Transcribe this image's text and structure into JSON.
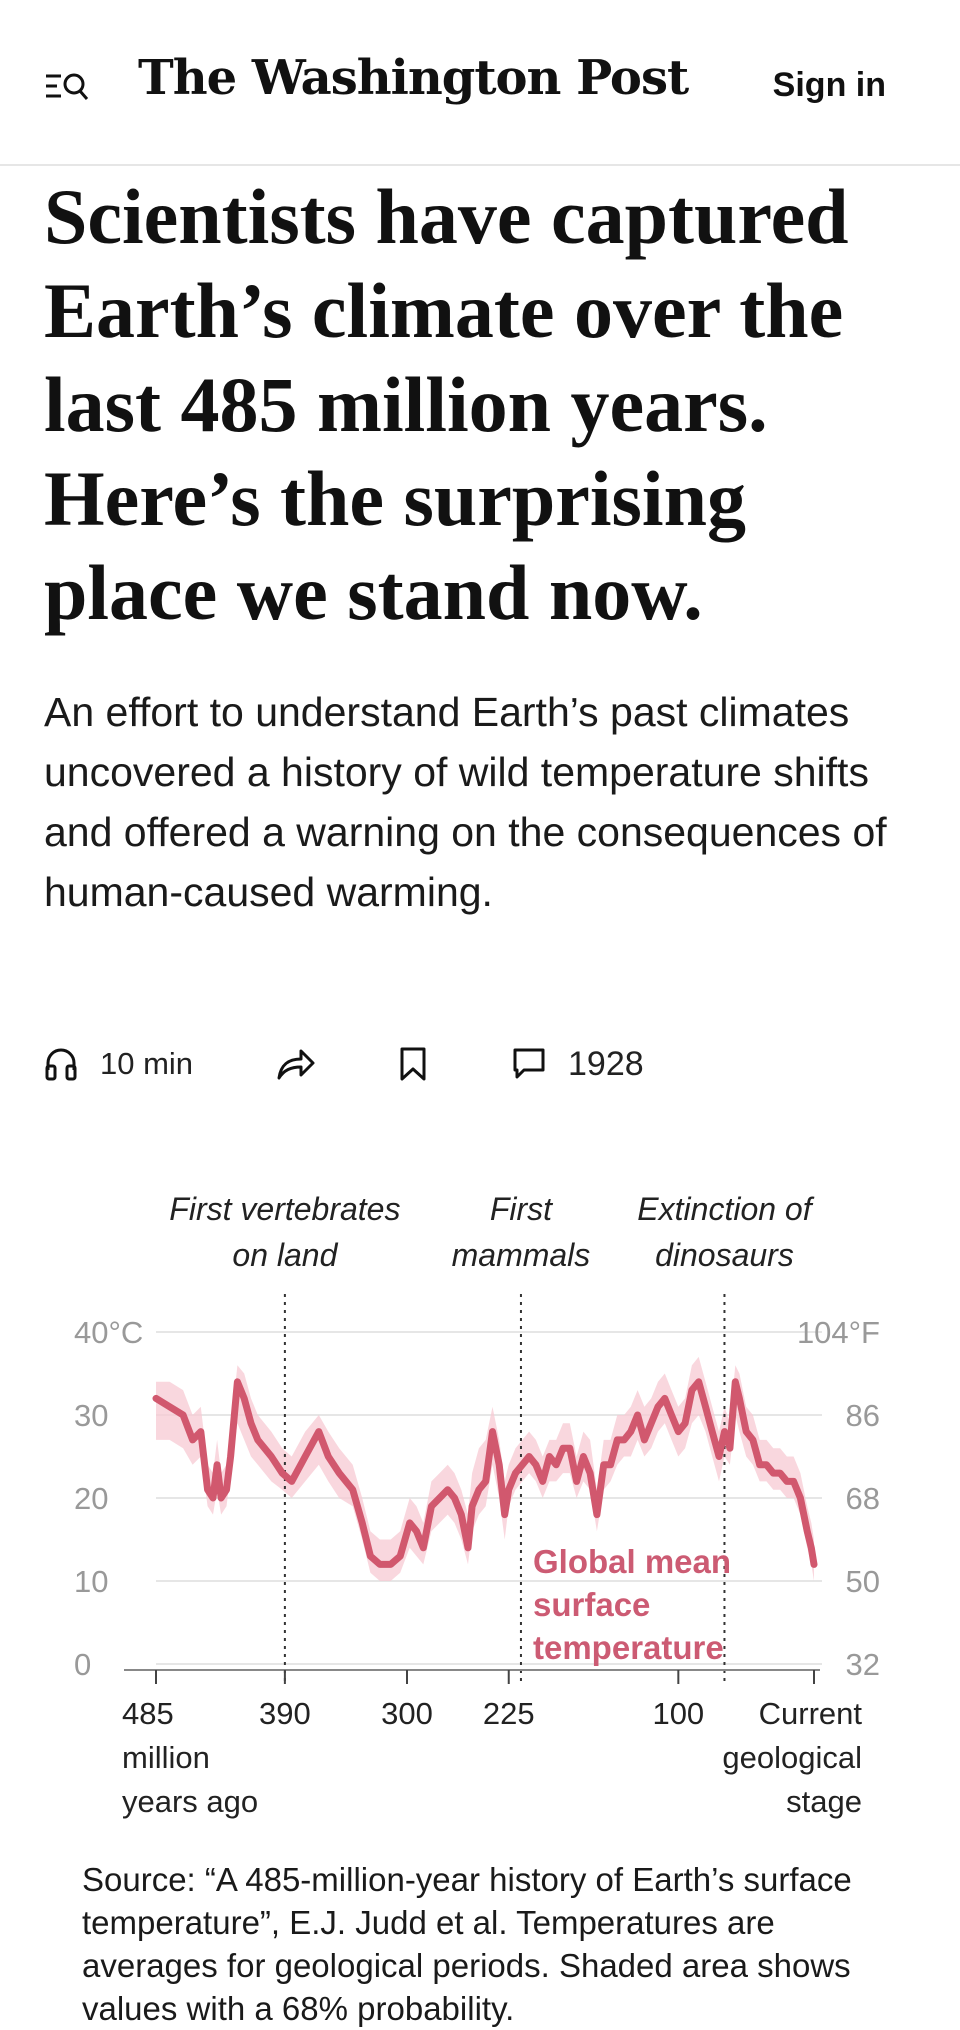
{
  "header": {
    "logo": "The Washington Post",
    "sign_in": "Sign in",
    "menu_icon": "menu-search-icon"
  },
  "article": {
    "headline": "Scientists have captured Earth’s climate over the last 485 million years. Here’s the surprising place we stand now.",
    "dek": "An effort to understand Earth’s past climates uncovered a history of wild temperature shifts and offered a warning on the consequences of human-caused warming."
  },
  "actions": {
    "listen": {
      "icon": "headphones-icon",
      "label": "10 min"
    },
    "share": {
      "icon": "share-icon"
    },
    "save": {
      "icon": "bookmark-icon"
    },
    "comments": {
      "icon": "comment-icon",
      "label": "1928"
    }
  },
  "chart_data": {
    "type": "line",
    "title": "",
    "xlabel": "",
    "ylabel": "",
    "x_reversed": true,
    "xlim": [
      485,
      0
    ],
    "ylim": [
      0,
      40
    ],
    "grid": true,
    "colors": {
      "line": "#d1586e",
      "band": "#f7c9d3",
      "label": "#cc5b73",
      "axis_text": "#999999",
      "grid": "#e6e6e6"
    },
    "y_ticks_left": [
      {
        "value": 40,
        "label": "40°C"
      },
      {
        "value": 30,
        "label": "30"
      },
      {
        "value": 20,
        "label": "20"
      },
      {
        "value": 10,
        "label": "10"
      },
      {
        "value": 0,
        "label": "0"
      }
    ],
    "y_ticks_right": [
      {
        "value": 40,
        "label": "104°F"
      },
      {
        "value": 30,
        "label": "86"
      },
      {
        "value": 20,
        "label": "68"
      },
      {
        "value": 10,
        "label": "50"
      },
      {
        "value": 0,
        "label": "32"
      }
    ],
    "x_ticks": [
      {
        "value": 485,
        "lines": [
          "485",
          "million",
          "years ago"
        ],
        "align": "start"
      },
      {
        "value": 390,
        "lines": [
          "390"
        ],
        "align": "middle"
      },
      {
        "value": 300,
        "lines": [
          "300"
        ],
        "align": "middle"
      },
      {
        "value": 225,
        "lines": [
          "225"
        ],
        "align": "middle"
      },
      {
        "value": 100,
        "lines": [
          "100"
        ],
        "align": "middle"
      },
      {
        "value": 0,
        "lines": [
          "Current",
          "geological",
          "stage"
        ],
        "align": "end"
      }
    ],
    "events": [
      {
        "x": 390,
        "lines": [
          "First vertebrates",
          "on land"
        ]
      },
      {
        "x": 216,
        "lines": [
          "First",
          "mammals"
        ]
      },
      {
        "x": 66,
        "lines": [
          "Extinction of",
          "dinosaurs"
        ]
      }
    ],
    "series": [
      {
        "name": "Global mean surface temperature",
        "label_lines": [
          "Global mean",
          "surface",
          "temperature"
        ],
        "x": [
          485,
          475,
          465,
          458,
          452,
          447,
          443,
          440,
          437,
          433,
          430,
          425,
          420,
          415,
          410,
          400,
          392,
          385,
          375,
          365,
          358,
          350,
          340,
          333,
          327,
          320,
          312,
          305,
          298,
          293,
          288,
          282,
          276,
          270,
          265,
          260,
          255,
          252,
          247,
          242,
          237,
          232,
          228,
          225,
          220,
          215,
          210,
          205,
          200,
          195,
          190,
          185,
          180,
          175,
          170,
          165,
          160,
          155,
          150,
          145,
          140,
          135,
          130,
          125,
          120,
          115,
          110,
          105,
          100,
          95,
          90,
          85,
          80,
          75,
          70,
          66,
          62,
          58,
          55,
          50,
          45,
          40,
          35,
          30,
          25,
          20,
          15,
          10,
          5,
          2,
          0
        ],
        "y": [
          32,
          31,
          30,
          27,
          28,
          21,
          20,
          24,
          20,
          21,
          25,
          34,
          32,
          29,
          27,
          25,
          23,
          22,
          25,
          28,
          25,
          23,
          21,
          17,
          13,
          12,
          12,
          13,
          17,
          16,
          14,
          19,
          20,
          21,
          20,
          18,
          14,
          19,
          21,
          22,
          28,
          24,
          18,
          21,
          23,
          24,
          25,
          24,
          22,
          25,
          24,
          26,
          26,
          22,
          25,
          23,
          18,
          24,
          24,
          27,
          27,
          28,
          30,
          27,
          29,
          31,
          32,
          30,
          28,
          29,
          33,
          34,
          31,
          28,
          25,
          28,
          26,
          34,
          32,
          28,
          27,
          24,
          24,
          23,
          23,
          22,
          22,
          20,
          16,
          14,
          12
        ],
        "band_low": [
          27,
          27,
          26,
          24,
          25,
          19,
          18,
          21,
          18,
          19,
          23,
          29,
          27,
          25,
          24,
          22,
          21,
          20,
          22,
          24,
          22,
          20,
          19,
          15,
          11,
          10,
          10,
          11,
          14,
          13,
          12,
          16,
          17,
          18,
          17,
          15,
          12,
          16,
          18,
          19,
          24,
          20,
          15,
          19,
          21,
          22,
          23,
          22,
          20,
          22,
          22,
          23,
          23,
          20,
          22,
          21,
          16,
          21,
          22,
          24,
          25,
          25,
          27,
          25,
          26,
          28,
          29,
          27,
          25,
          26,
          29,
          30,
          28,
          25,
          22,
          25,
          24,
          30,
          28,
          25,
          24,
          22,
          22,
          21,
          21,
          20,
          20,
          18,
          14,
          12,
          10
        ],
        "band_high": [
          34,
          34,
          33,
          30,
          31,
          24,
          23,
          27,
          23,
          24,
          28,
          36,
          35,
          32,
          30,
          28,
          26,
          25,
          28,
          30,
          28,
          26,
          24,
          20,
          16,
          15,
          15,
          16,
          20,
          19,
          17,
          22,
          23,
          24,
          23,
          21,
          18,
          23,
          26,
          27,
          31,
          27,
          22,
          24,
          26,
          27,
          28,
          27,
          25,
          27,
          27,
          29,
          29,
          25,
          28,
          27,
          21,
          27,
          27,
          30,
          30,
          31,
          33,
          31,
          32,
          34,
          35,
          33,
          31,
          32,
          36,
          37,
          34,
          31,
          28,
          31,
          29,
          36,
          35,
          31,
          30,
          27,
          27,
          26,
          26,
          25,
          25,
          23,
          19,
          17,
          15
        ]
      }
    ]
  },
  "source": "Source: “A 485-million-year history of Earth’s surface temperature”, E.J. Judd et al. Temperatures are averages for geological periods. Shaded area shows values with a 68% probability."
}
